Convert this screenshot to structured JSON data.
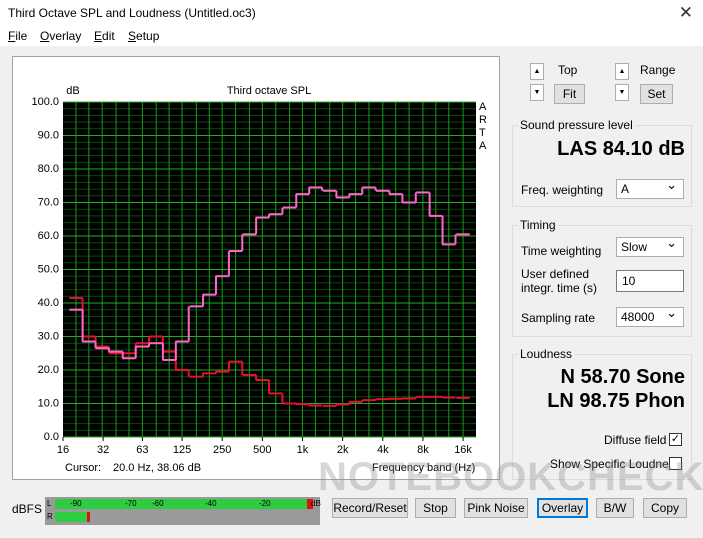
{
  "window": {
    "title": "Third Octave SPL and Loudness (Untitled.oc3)",
    "menu": [
      "File",
      "Overlay",
      "Edit",
      "Setup"
    ]
  },
  "chart": {
    "type": "step",
    "title": "Third octave SPL",
    "y_unit": "dB",
    "side_label": "ARTA",
    "x_label": "Frequency band (Hz)",
    "log_x": true,
    "x": [
      20,
      25,
      31.5,
      40,
      50,
      63,
      80,
      100,
      125,
      160,
      200,
      250,
      315,
      400,
      500,
      630,
      800,
      1000,
      1250,
      1600,
      2000,
      2500,
      3150,
      4000,
      5000,
      6300,
      8000,
      10000,
      12500,
      16000
    ],
    "series": [
      {
        "color": "#e8102a",
        "values": [
          41.5,
          30,
          27,
          25,
          25,
          28,
          30,
          25.5,
          20,
          18,
          19,
          19.5,
          22.5,
          18.5,
          17,
          13,
          10,
          9.8,
          9.4,
          9.3,
          9.7,
          10.5,
          11,
          11.3,
          11.4,
          11.5,
          12,
          12,
          11.8,
          11.7
        ]
      },
      {
        "color": "#ff66cc",
        "values": [
          38,
          28.5,
          26.5,
          25.5,
          23.5,
          27,
          28,
          23,
          28.5,
          39,
          42.5,
          48,
          55.5,
          60.5,
          65.5,
          66.5,
          68.5,
          72.5,
          74.5,
          73.5,
          71.5,
          72.5,
          74.5,
          73.5,
          72.5,
          70,
          73,
          66,
          57.5,
          60.5
        ]
      }
    ],
    "xlim": [
      16,
      20000
    ],
    "ylim": [
      0,
      100
    ],
    "xticks": [
      16,
      32,
      63,
      125,
      250,
      500,
      {
        "value": 1000,
        "label": "1k"
      },
      {
        "value": 2000,
        "label": "2k"
      },
      {
        "value": 4000,
        "label": "4k"
      },
      {
        "value": 8000,
        "label": "8k"
      },
      {
        "value": 16000,
        "label": "16k"
      }
    ],
    "yticks": [
      {
        "value": 0,
        "label": "0.0"
      },
      {
        "value": 10,
        "label": "10.0"
      },
      {
        "value": 20,
        "label": "20.0"
      },
      {
        "value": 30,
        "label": "30.0"
      },
      {
        "value": 40,
        "label": "40.0"
      },
      {
        "value": 50,
        "label": "50.0"
      },
      {
        "value": 60,
        "label": "60.0"
      },
      {
        "value": 70,
        "label": "70.0"
      },
      {
        "value": 80,
        "label": "80.0"
      },
      {
        "value": 90,
        "label": "90.0"
      },
      {
        "value": 100,
        "label": "100.0"
      }
    ],
    "grid": true
  },
  "cursor": {
    "label": "Cursor:",
    "value": "20.0 Hz, 38.06 dB"
  },
  "controls": {
    "top": "Top",
    "fit": "Fit",
    "range": "Range",
    "set": "Set"
  },
  "spl": {
    "group": "Sound pressure level",
    "reading": "LAS 84.10 dB",
    "freq_weighting_label": "Freq. weighting",
    "freq_weighting": "A"
  },
  "timing": {
    "group": "Timing",
    "time_weighting_label": "Time weighting",
    "time_weighting": "Slow",
    "integr_label_1": "User defined",
    "integr_label_2": "integr. time (s)",
    "integr_time": "10",
    "sampling_rate_label": "Sampling rate",
    "sampling_rate": "48000"
  },
  "loudness": {
    "group": "Loudness",
    "n": "N 58.70 Sone",
    "ln": "LN 98.75 Phon",
    "diffuse_field_label": "Diffuse field",
    "diffuse_field": true,
    "show_specific_label": "Show Specific Loudness",
    "show_specific": false
  },
  "meter": {
    "label": "dBFS",
    "channels": [
      "L",
      "R"
    ],
    "scale": [
      "-90",
      "-70",
      "-60",
      "-40",
      "-20",
      "dB"
    ]
  },
  "buttons": [
    "Record/Reset",
    "Stop",
    "Pink Noise",
    "Overlay",
    "B/W",
    "Copy"
  ],
  "watermark": "NOTEBOOKCHECK"
}
